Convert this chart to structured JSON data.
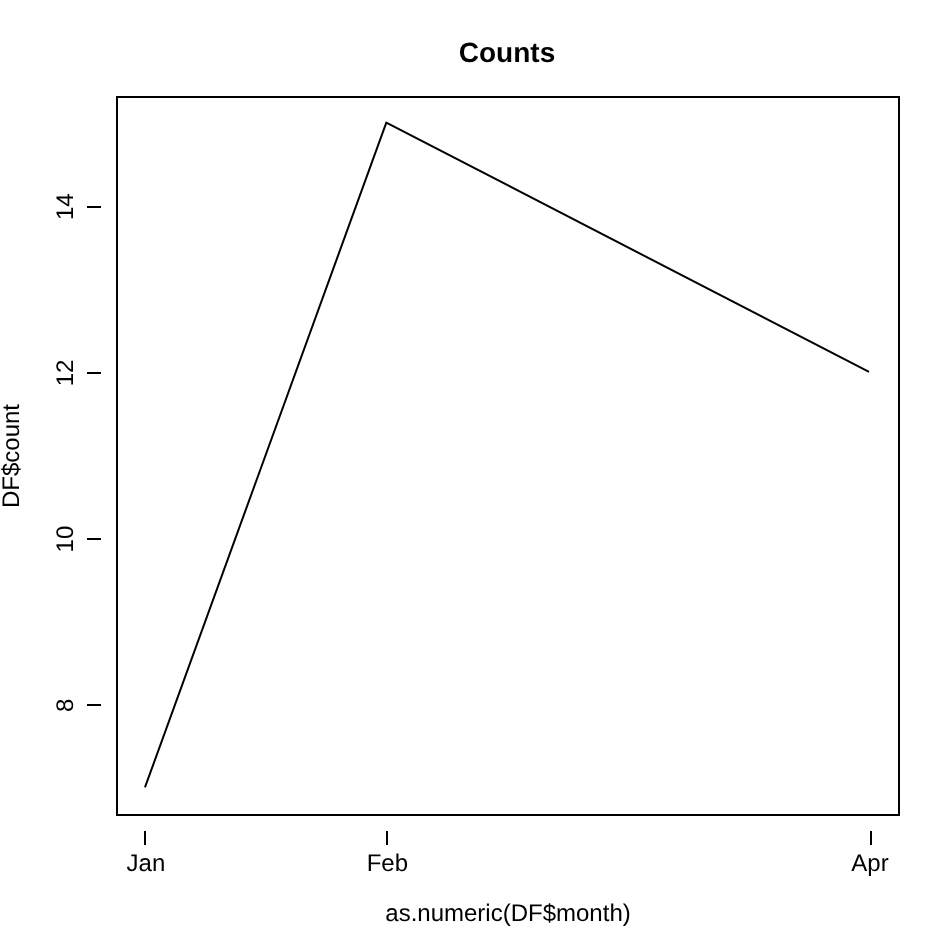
{
  "chart_data": {
    "type": "line",
    "title": "Counts",
    "xlabel": "as.numeric(DF$month)",
    "ylabel": "DF$count",
    "categories": [
      "Jan",
      "Feb",
      null,
      "Apr"
    ],
    "series": [
      {
        "color": "#000000",
        "line_style": "solid",
        "values": [
          7,
          15,
          null,
          12
        ]
      }
    ],
    "ylim": [
      6.68,
      15.32
    ],
    "yticks": [
      8,
      10,
      12,
      14
    ],
    "grid": false
  }
}
